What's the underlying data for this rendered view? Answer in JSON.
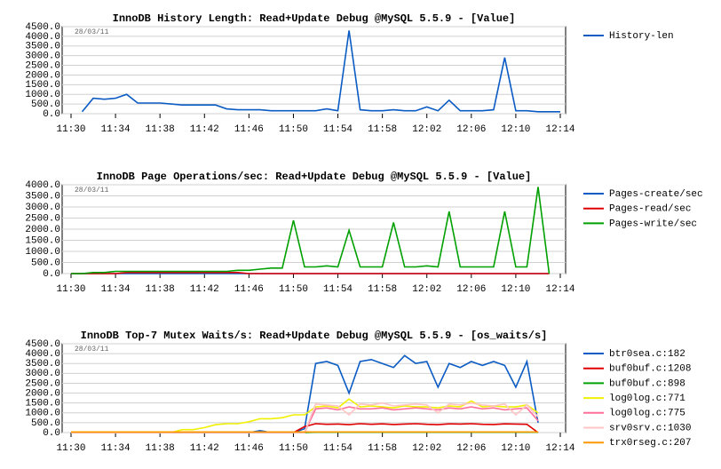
{
  "chart_data": [
    {
      "type": "line",
      "title": "InnoDB History Length: Read+Update Debug @MySQL 5.5.9 - [Value]",
      "annotation": "28/03/11",
      "x": [
        "11:30",
        "11:31",
        "11:32",
        "11:33",
        "11:34",
        "11:35",
        "11:36",
        "11:37",
        "11:38",
        "11:39",
        "11:40",
        "11:41",
        "11:42",
        "11:43",
        "11:44",
        "11:45",
        "11:46",
        "11:47",
        "11:48",
        "11:49",
        "11:50",
        "11:51",
        "11:52",
        "11:53",
        "11:54",
        "11:55",
        "11:56",
        "11:57",
        "11:58",
        "11:59",
        "12:00",
        "12:01",
        "12:02",
        "12:03",
        "12:04",
        "12:05",
        "12:06",
        "12:07",
        "12:08",
        "12:09",
        "12:10",
        "12:11",
        "12:12",
        "12:13",
        "12:14"
      ],
      "xlim": [
        "11:30",
        "12:14"
      ],
      "xticks": [
        "11:30",
        "11:34",
        "11:38",
        "11:42",
        "11:46",
        "11:50",
        "11:54",
        "11:58",
        "12:02",
        "12:06",
        "12:10",
        "12:14"
      ],
      "ylim": [
        0,
        4500
      ],
      "yticks": [
        {
          "value": 0,
          "label": "0.0"
        },
        {
          "value": 500,
          "label": "500.0"
        },
        {
          "value": 1000,
          "label": "1000.0"
        },
        {
          "value": 1500,
          "label": "1500.0"
        },
        {
          "value": 2000,
          "label": "2000.0"
        },
        {
          "value": 2500,
          "label": "2500.0"
        },
        {
          "value": 3000,
          "label": "3000.0"
        },
        {
          "value": 3500,
          "label": "3500.0"
        },
        {
          "value": 4000,
          "label": "4000.0"
        },
        {
          "value": 4500,
          "label": "4500.0"
        }
      ],
      "grid": true,
      "legend": "right",
      "series": [
        {
          "name": "History-len",
          "color": "#0a5bc4",
          "values": [
            null,
            100,
            800,
            750,
            800,
            1000,
            550,
            550,
            550,
            500,
            450,
            450,
            450,
            450,
            250,
            200,
            200,
            200,
            150,
            150,
            150,
            150,
            150,
            250,
            150,
            4300,
            200,
            150,
            150,
            200,
            150,
            150,
            350,
            150,
            700,
            150,
            150,
            150,
            200,
            2900,
            150,
            150,
            100,
            100,
            100
          ]
        }
      ]
    },
    {
      "type": "line",
      "title": "InnoDB Page Operations/sec: Read+Update Debug @MySQL 5.5.9 - [Value]",
      "annotation": "28/03/11",
      "x": [
        "11:30",
        "11:31",
        "11:32",
        "11:33",
        "11:34",
        "11:35",
        "11:36",
        "11:37",
        "11:38",
        "11:39",
        "11:40",
        "11:41",
        "11:42",
        "11:43",
        "11:44",
        "11:45",
        "11:46",
        "11:47",
        "11:48",
        "11:49",
        "11:50",
        "11:51",
        "11:52",
        "11:53",
        "11:54",
        "11:55",
        "11:56",
        "11:57",
        "11:58",
        "11:59",
        "12:00",
        "12:01",
        "12:02",
        "12:03",
        "12:04",
        "12:05",
        "12:06",
        "12:07",
        "12:08",
        "12:09",
        "12:10",
        "12:11",
        "12:12",
        "12:13",
        "12:14"
      ],
      "xlim": [
        "11:30",
        "12:14"
      ],
      "xticks": [
        "11:30",
        "11:34",
        "11:38",
        "11:42",
        "11:46",
        "11:50",
        "11:54",
        "11:58",
        "12:02",
        "12:06",
        "12:10",
        "12:14"
      ],
      "ylim": [
        0,
        4000
      ],
      "yticks": [
        {
          "value": 0,
          "label": "0.0"
        },
        {
          "value": 500,
          "label": "500.0"
        },
        {
          "value": 1000,
          "label": "1000.0"
        },
        {
          "value": 1500,
          "label": "1500.0"
        },
        {
          "value": 2000,
          "label": "2000.0"
        },
        {
          "value": 2500,
          "label": "2500.0"
        },
        {
          "value": 3000,
          "label": "3000.0"
        },
        {
          "value": 3500,
          "label": "3500.0"
        },
        {
          "value": 4000,
          "label": "4000.0"
        }
      ],
      "grid": true,
      "legend": "right",
      "series": [
        {
          "name": "Pages-create/sec",
          "color": "#0a5bc4",
          "values": [
            0,
            0,
            0,
            0,
            0,
            0,
            0,
            0,
            0,
            0,
            0,
            0,
            0,
            0,
            0,
            0,
            0,
            0,
            0,
            0,
            0,
            0,
            0,
            0,
            0,
            0,
            0,
            0,
            0,
            0,
            0,
            0,
            0,
            0,
            0,
            0,
            0,
            0,
            0,
            0,
            0,
            0,
            0,
            0,
            null
          ]
        },
        {
          "name": "Pages-read/sec",
          "color": "#e00000",
          "values": [
            0,
            0,
            0,
            0,
            0,
            50,
            50,
            50,
            50,
            50,
            50,
            50,
            50,
            50,
            50,
            50,
            0,
            0,
            0,
            0,
            0,
            0,
            0,
            0,
            0,
            0,
            0,
            0,
            0,
            0,
            0,
            0,
            0,
            0,
            0,
            0,
            0,
            0,
            0,
            0,
            0,
            0,
            0,
            0,
            null
          ]
        },
        {
          "name": "Pages-write/sec",
          "color": "#00a000",
          "values": [
            0,
            0,
            50,
            50,
            100,
            100,
            100,
            100,
            100,
            100,
            100,
            100,
            100,
            100,
            100,
            150,
            150,
            200,
            250,
            250,
            2400,
            300,
            300,
            350,
            300,
            1950,
            300,
            300,
            300,
            2300,
            300,
            300,
            350,
            300,
            2800,
            300,
            300,
            300,
            300,
            2800,
            300,
            300,
            3900,
            0,
            null
          ]
        }
      ]
    },
    {
      "type": "line",
      "title": "InnoDB Top-7 Mutex Waits/s: Read+Update Debug @MySQL 5.5.9 - [os_waits/s]",
      "annotation": "28/03/11",
      "x": [
        "11:30",
        "11:31",
        "11:32",
        "11:33",
        "11:34",
        "11:35",
        "11:36",
        "11:37",
        "11:38",
        "11:39",
        "11:40",
        "11:41",
        "11:42",
        "11:43",
        "11:44",
        "11:45",
        "11:46",
        "11:47",
        "11:48",
        "11:49",
        "11:50",
        "11:51",
        "11:52",
        "11:53",
        "11:54",
        "11:55",
        "11:56",
        "11:57",
        "11:58",
        "11:59",
        "12:00",
        "12:01",
        "12:02",
        "12:03",
        "12:04",
        "12:05",
        "12:06",
        "12:07",
        "12:08",
        "12:09",
        "12:10",
        "12:11",
        "12:12",
        "12:13",
        "12:14"
      ],
      "xlim": [
        "11:30",
        "12:14"
      ],
      "xticks": [
        "11:30",
        "11:34",
        "11:38",
        "11:42",
        "11:46",
        "11:50",
        "11:54",
        "11:58",
        "12:02",
        "12:06",
        "12:10",
        "12:14"
      ],
      "ylim": [
        0,
        4500
      ],
      "yticks": [
        {
          "value": 0,
          "label": "0.0"
        },
        {
          "value": 500,
          "label": "500.0"
        },
        {
          "value": 1000,
          "label": "1000.0"
        },
        {
          "value": 1500,
          "label": "1500.0"
        },
        {
          "value": 2000,
          "label": "2000.0"
        },
        {
          "value": 2500,
          "label": "2500.0"
        },
        {
          "value": 3000,
          "label": "3000.0"
        },
        {
          "value": 3500,
          "label": "3500.0"
        },
        {
          "value": 4000,
          "label": "4000.0"
        },
        {
          "value": 4500,
          "label": "4500.0"
        }
      ],
      "grid": true,
      "legend": "right",
      "series": [
        {
          "name": "btr0sea.c:182",
          "color": "#0a5bc4",
          "values": [
            0,
            0,
            0,
            0,
            0,
            0,
            0,
            0,
            0,
            0,
            0,
            0,
            0,
            0,
            0,
            0,
            0,
            100,
            0,
            0,
            0,
            200,
            3500,
            3600,
            3400,
            2000,
            3600,
            3700,
            3500,
            3300,
            3900,
            3500,
            3600,
            2300,
            3500,
            3300,
            3600,
            3400,
            3600,
            3400,
            2300,
            3600,
            500,
            null,
            null
          ]
        },
        {
          "name": "buf0buf.c:1208",
          "color": "#e00000",
          "values": [
            0,
            0,
            0,
            0,
            0,
            0,
            0,
            0,
            0,
            0,
            0,
            0,
            0,
            0,
            0,
            0,
            0,
            0,
            0,
            0,
            0,
            300,
            450,
            420,
            430,
            400,
            450,
            420,
            440,
            410,
            430,
            450,
            420,
            400,
            440,
            430,
            450,
            420,
            410,
            440,
            430,
            420,
            0,
            null,
            null
          ]
        },
        {
          "name": "buf0buf.c:898",
          "color": "#00a000",
          "values": [
            0,
            0,
            0,
            0,
            0,
            0,
            0,
            0,
            0,
            0,
            0,
            0,
            0,
            0,
            0,
            0,
            0,
            0,
            0,
            0,
            0,
            0,
            20,
            20,
            20,
            20,
            20,
            20,
            20,
            20,
            20,
            20,
            20,
            20,
            20,
            20,
            20,
            20,
            20,
            20,
            20,
            20,
            20,
            null,
            null
          ]
        },
        {
          "name": "log0log.c:771",
          "color": "#f0f000",
          "values": [
            0,
            0,
            0,
            0,
            0,
            0,
            0,
            0,
            0,
            0,
            150,
            150,
            250,
            400,
            450,
            450,
            550,
            700,
            700,
            750,
            900,
            900,
            1300,
            1350,
            1250,
            1700,
            1300,
            1350,
            1300,
            1250,
            1350,
            1300,
            1300,
            1250,
            1350,
            1300,
            1600,
            1300,
            1350,
            1300,
            1300,
            1400,
            1000,
            null,
            null
          ]
        },
        {
          "name": "log0log.c:775",
          "color": "#ff6f9a",
          "values": [
            0,
            0,
            0,
            0,
            0,
            0,
            0,
            0,
            0,
            0,
            0,
            0,
            0,
            0,
            0,
            0,
            0,
            0,
            0,
            0,
            0,
            0,
            1200,
            1250,
            1150,
            1300,
            1200,
            1200,
            1250,
            1150,
            1200,
            1250,
            1200,
            1150,
            1250,
            1200,
            1300,
            1200,
            1250,
            1150,
            1200,
            1250,
            600,
            null,
            null
          ]
        },
        {
          "name": "srv0srv.c:1030",
          "color": "#ffc4c4",
          "values": [
            0,
            0,
            0,
            0,
            0,
            0,
            0,
            0,
            0,
            0,
            0,
            0,
            0,
            0,
            0,
            0,
            0,
            0,
            0,
            0,
            0,
            0,
            1450,
            1400,
            1350,
            900,
            1450,
            1400,
            1500,
            1350,
            1400,
            1450,
            1400,
            1000,
            1450,
            1400,
            1500,
            1400,
            1350,
            1450,
            900,
            1400,
            800,
            null,
            null
          ]
        },
        {
          "name": "trx0rseg.c:207",
          "color": "#ff9900",
          "values": [
            30,
            30,
            30,
            30,
            30,
            30,
            30,
            30,
            30,
            30,
            30,
            30,
            30,
            30,
            30,
            30,
            30,
            30,
            30,
            30,
            30,
            30,
            30,
            30,
            30,
            30,
            30,
            30,
            30,
            30,
            30,
            30,
            30,
            30,
            30,
            30,
            30,
            30,
            30,
            30,
            30,
            30,
            30,
            null,
            null
          ]
        }
      ]
    }
  ]
}
